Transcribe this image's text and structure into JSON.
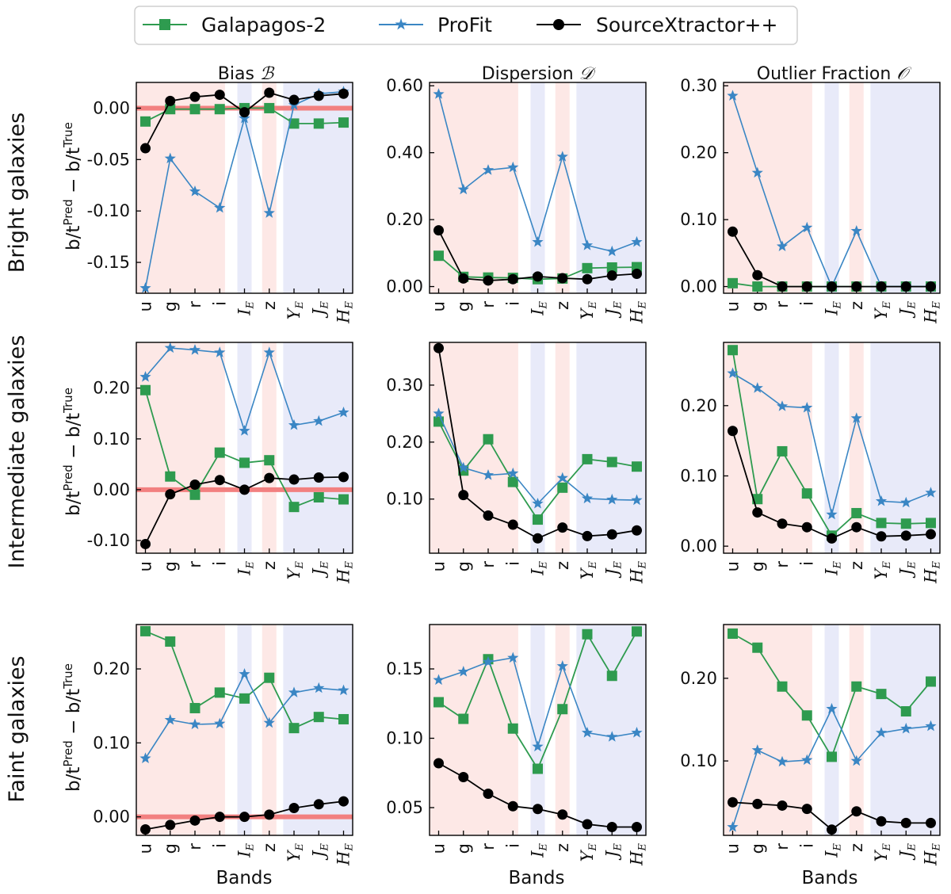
{
  "colors": {
    "galapagos": "#2e9b4f",
    "profit": "#3a86c4",
    "sourcextractor": "#000000",
    "optical_band": "#fde8e6",
    "euclid_band": "#e8eaf9",
    "zero_line": "#f28080"
  },
  "legend": {
    "galapagos": "Galapagos-2",
    "profit": "ProFit",
    "sourcextractor": "SourceXtractor++"
  },
  "column_titles": {
    "bias": {
      "text": "Bias",
      "symbol": "ℬ"
    },
    "dispersion": {
      "text": "Dispersion",
      "symbol": "𝒟"
    },
    "outlier": {
      "text": "Outlier Fraction",
      "symbol": "𝒪"
    }
  },
  "row_labels": [
    "Bright galaxies",
    "Intermediate galaxies",
    "Faint galaxies"
  ],
  "ylabel": {
    "lhs": "b/t",
    "pred": "Pred",
    "minus": " − b/t",
    "true": "True"
  },
  "xlabel": "Bands",
  "bands": [
    {
      "main": "u",
      "sub": "",
      "italic": false
    },
    {
      "main": "g",
      "sub": "",
      "italic": false
    },
    {
      "main": "r",
      "sub": "",
      "italic": false
    },
    {
      "main": "i",
      "sub": "",
      "italic": false
    },
    {
      "main": "I",
      "sub": "E",
      "italic": true
    },
    {
      "main": "z",
      "sub": "",
      "italic": false
    },
    {
      "main": "Y",
      "sub": "E",
      "italic": true
    },
    {
      "main": "J",
      "sub": "E",
      "italic": true
    },
    {
      "main": "H",
      "sub": "E",
      "italic": true
    }
  ],
  "chart_data": [
    {
      "id": "bright-bias",
      "type": "line",
      "row": "Bright galaxies",
      "metric": "Bias",
      "ylim": [
        -0.18,
        0.025
      ],
      "yticks": [
        "0.00",
        "-0.05",
        "-0.10",
        "-0.15"
      ],
      "ytick_values": [
        0,
        -0.05,
        -0.1,
        -0.15
      ],
      "zero_line": true,
      "series": [
        {
          "name": "Galapagos-2",
          "values": [
            -0.013,
            -0.001,
            -0.001,
            -0.001,
            0.0,
            0.0,
            -0.015,
            -0.015,
            -0.014
          ]
        },
        {
          "name": "ProFit",
          "values": [
            -0.175,
            -0.049,
            -0.081,
            -0.097,
            -0.01,
            -0.102,
            0.003,
            0.014,
            0.016
          ]
        },
        {
          "name": "SourceXtractor++",
          "values": [
            -0.039,
            0.007,
            0.011,
            0.013,
            -0.004,
            0.015,
            0.008,
            0.012,
            0.014
          ]
        }
      ]
    },
    {
      "id": "bright-dispersion",
      "type": "line",
      "row": "Bright galaxies",
      "metric": "Dispersion",
      "ylim": [
        -0.02,
        0.61
      ],
      "yticks": [
        "0.00",
        "0.20",
        "0.40",
        "0.60"
      ],
      "ytick_values": [
        0,
        0.2,
        0.4,
        0.6
      ],
      "zero_line": false,
      "series": [
        {
          "name": "Galapagos-2",
          "values": [
            0.092,
            0.029,
            0.027,
            0.026,
            0.022,
            0.024,
            0.055,
            0.057,
            0.058
          ]
        },
        {
          "name": "ProFit",
          "values": [
            0.575,
            0.29,
            0.348,
            0.356,
            0.133,
            0.388,
            0.123,
            0.105,
            0.133
          ]
        },
        {
          "name": "SourceXtractor++",
          "values": [
            0.168,
            0.024,
            0.018,
            0.022,
            0.03,
            0.025,
            0.022,
            0.033,
            0.038
          ]
        }
      ]
    },
    {
      "id": "bright-outlier",
      "type": "line",
      "row": "Bright galaxies",
      "metric": "Outlier Fraction",
      "ylim": [
        -0.01,
        0.305
      ],
      "yticks": [
        "0.00",
        "0.10",
        "0.20",
        "0.30"
      ],
      "ytick_values": [
        0,
        0.1,
        0.2,
        0.3
      ],
      "zero_line": false,
      "series": [
        {
          "name": "Galapagos-2",
          "values": [
            0.005,
            0.0,
            0.0,
            0.0,
            0.0,
            0.0,
            0.0,
            0.0,
            0.0
          ]
        },
        {
          "name": "ProFit",
          "values": [
            0.285,
            0.17,
            0.06,
            0.088,
            0.0,
            0.083,
            0.0,
            0.0,
            0.0
          ]
        },
        {
          "name": "SourceXtractor++",
          "values": [
            0.082,
            0.017,
            0.0,
            0.0,
            0.0,
            0.0,
            0.0,
            0.0,
            0.0
          ]
        }
      ]
    },
    {
      "id": "intermediate-bias",
      "type": "line",
      "row": "Intermediate galaxies",
      "metric": "Bias",
      "ylim": [
        -0.125,
        0.29
      ],
      "yticks": [
        "0.20",
        "0.10",
        "0.00",
        "-0.10"
      ],
      "ytick_values": [
        0.2,
        0.1,
        0,
        -0.1
      ],
      "zero_line": true,
      "series": [
        {
          "name": "Galapagos-2",
          "values": [
            0.196,
            0.026,
            -0.01,
            0.073,
            0.053,
            0.058,
            -0.034,
            -0.015,
            -0.019
          ]
        },
        {
          "name": "ProFit",
          "values": [
            0.222,
            0.279,
            0.275,
            0.27,
            0.116,
            0.27,
            0.127,
            0.135,
            0.152
          ]
        },
        {
          "name": "SourceXtractor++",
          "values": [
            -0.107,
            -0.009,
            0.01,
            0.019,
            0.0,
            0.023,
            0.02,
            0.024,
            0.025
          ]
        }
      ]
    },
    {
      "id": "intermediate-dispersion",
      "type": "line",
      "row": "Intermediate galaxies",
      "metric": "Dispersion",
      "ylim": [
        0.005,
        0.375
      ],
      "yticks": [
        "0.30",
        "0.20",
        "0.10"
      ],
      "ytick_values": [
        0.3,
        0.2,
        0.1
      ],
      "zero_line": false,
      "series": [
        {
          "name": "Galapagos-2",
          "values": [
            0.236,
            0.15,
            0.205,
            0.13,
            0.064,
            0.12,
            0.17,
            0.165,
            0.157
          ]
        },
        {
          "name": "ProFit",
          "values": [
            0.25,
            0.155,
            0.142,
            0.145,
            0.092,
            0.137,
            0.101,
            0.099,
            0.098
          ]
        },
        {
          "name": "SourceXtractor++",
          "values": [
            0.365,
            0.107,
            0.071,
            0.055,
            0.031,
            0.05,
            0.035,
            0.038,
            0.045
          ]
        }
      ]
    },
    {
      "id": "intermediate-outlier",
      "type": "line",
      "row": "Intermediate galaxies",
      "metric": "Outlier Fraction",
      "ylim": [
        -0.01,
        0.29
      ],
      "yticks": [
        "0.20",
        "0.10",
        "0.00"
      ],
      "ytick_values": [
        0.2,
        0.1,
        0
      ],
      "zero_line": false,
      "series": [
        {
          "name": "Galapagos-2",
          "values": [
            0.279,
            0.067,
            0.135,
            0.075,
            0.015,
            0.047,
            0.033,
            0.032,
            0.033
          ]
        },
        {
          "name": "ProFit",
          "values": [
            0.246,
            0.225,
            0.199,
            0.197,
            0.045,
            0.182,
            0.064,
            0.062,
            0.076
          ]
        },
        {
          "name": "SourceXtractor++",
          "values": [
            0.164,
            0.048,
            0.032,
            0.027,
            0.011,
            0.027,
            0.014,
            0.015,
            0.017
          ]
        }
      ]
    },
    {
      "id": "faint-bias",
      "type": "line",
      "row": "Faint galaxies",
      "metric": "Bias",
      "ylim": [
        -0.025,
        0.26
      ],
      "yticks": [
        "0.20",
        "0.10",
        "0.00"
      ],
      "ytick_values": [
        0.2,
        0.1,
        0
      ],
      "zero_line": true,
      "series": [
        {
          "name": "Galapagos-2",
          "values": [
            0.251,
            0.237,
            0.147,
            0.168,
            0.16,
            0.188,
            0.12,
            0.135,
            0.132
          ]
        },
        {
          "name": "ProFit",
          "values": [
            0.079,
            0.131,
            0.125,
            0.126,
            0.193,
            0.127,
            0.168,
            0.174,
            0.171
          ]
        },
        {
          "name": "SourceXtractor++",
          "values": [
            -0.017,
            -0.011,
            -0.005,
            0.0,
            0.0,
            0.003,
            0.012,
            0.017,
            0.021
          ]
        }
      ]
    },
    {
      "id": "faint-dispersion",
      "type": "line",
      "row": "Faint galaxies",
      "metric": "Dispersion",
      "ylim": [
        0.03,
        0.182
      ],
      "yticks": [
        "0.15",
        "0.10",
        "0.05"
      ],
      "ytick_values": [
        0.15,
        0.1,
        0.05
      ],
      "zero_line": false,
      "series": [
        {
          "name": "Galapagos-2",
          "values": [
            0.126,
            0.114,
            0.157,
            0.107,
            0.078,
            0.121,
            0.175,
            0.145,
            0.177
          ]
        },
        {
          "name": "ProFit",
          "values": [
            0.142,
            0.148,
            0.155,
            0.158,
            0.094,
            0.152,
            0.104,
            0.101,
            0.104
          ]
        },
        {
          "name": "SourceXtractor++",
          "values": [
            0.082,
            0.072,
            0.06,
            0.051,
            0.049,
            0.045,
            0.038,
            0.036,
            0.036
          ]
        }
      ]
    },
    {
      "id": "faint-outlier",
      "type": "line",
      "row": "Faint galaxies",
      "metric": "Outlier Fraction",
      "ylim": [
        0.01,
        0.265
      ],
      "yticks": [
        "0.20",
        "0.10"
      ],
      "ytick_values": [
        0.2,
        0.1
      ],
      "zero_line": false,
      "series": [
        {
          "name": "Galapagos-2",
          "values": [
            0.254,
            0.237,
            0.19,
            0.155,
            0.105,
            0.19,
            0.181,
            0.16,
            0.196
          ]
        },
        {
          "name": "ProFit",
          "values": [
            0.02,
            0.113,
            0.099,
            0.101,
            0.163,
            0.1,
            0.134,
            0.139,
            0.142
          ]
        },
        {
          "name": "SourceXtractor++",
          "values": [
            0.05,
            0.048,
            0.046,
            0.042,
            0.017,
            0.039,
            0.027,
            0.025,
            0.025
          ]
        }
      ]
    }
  ]
}
